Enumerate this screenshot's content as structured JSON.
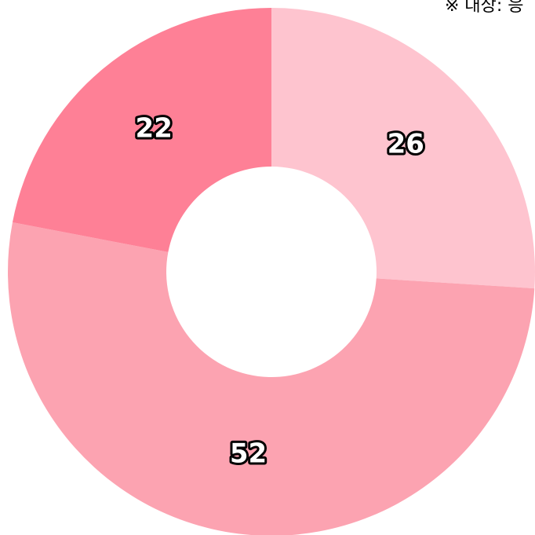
{
  "chart_data": {
    "type": "donut",
    "note": "※ 대상: 응",
    "values": [
      26,
      52,
      22
    ],
    "colors": [
      "#fec4cf",
      "#fca3b1",
      "#fe8096"
    ]
  }
}
